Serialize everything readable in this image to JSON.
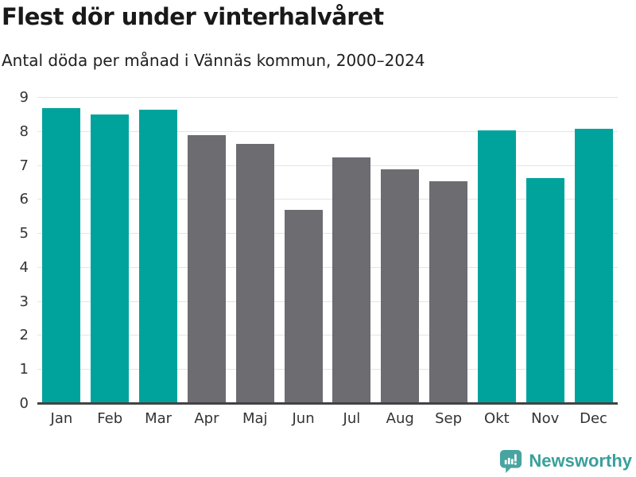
{
  "header": {
    "title": "Flest dör under vinterhalvåret",
    "subtitle": "Antal döda per månad i Vännäs kommun, 2000–2024"
  },
  "chart_data": {
    "type": "bar",
    "title": "Flest dör under vinterhalvåret",
    "subtitle": "Antal döda per månad i Vännäs kommun, 2000–2024",
    "categories": [
      "Jan",
      "Feb",
      "Mar",
      "Apr",
      "Maj",
      "Jun",
      "Jul",
      "Aug",
      "Sep",
      "Okt",
      "Nov",
      "Dec"
    ],
    "values": [
      8.7,
      8.5,
      8.65,
      7.9,
      7.65,
      5.7,
      7.25,
      6.9,
      6.55,
      8.05,
      6.65,
      8.1
    ],
    "bar_colors": [
      "winter",
      "winter",
      "winter",
      "summer",
      "summer",
      "summer",
      "summer",
      "summer",
      "summer",
      "winter",
      "winter",
      "winter"
    ],
    "palette": {
      "winter": "#00a39c",
      "summer": "#6c6c71"
    },
    "xlabel": "",
    "ylabel": "",
    "ylim": [
      0,
      9
    ],
    "yticks": [
      0,
      1,
      2,
      3,
      4,
      5,
      6,
      7,
      8,
      9
    ],
    "grid": true,
    "legend": "none"
  },
  "footer": {
    "brand": "Newsworthy",
    "brand_text_color": "#38a09b",
    "brand_icon_color": "#47a4a0"
  }
}
